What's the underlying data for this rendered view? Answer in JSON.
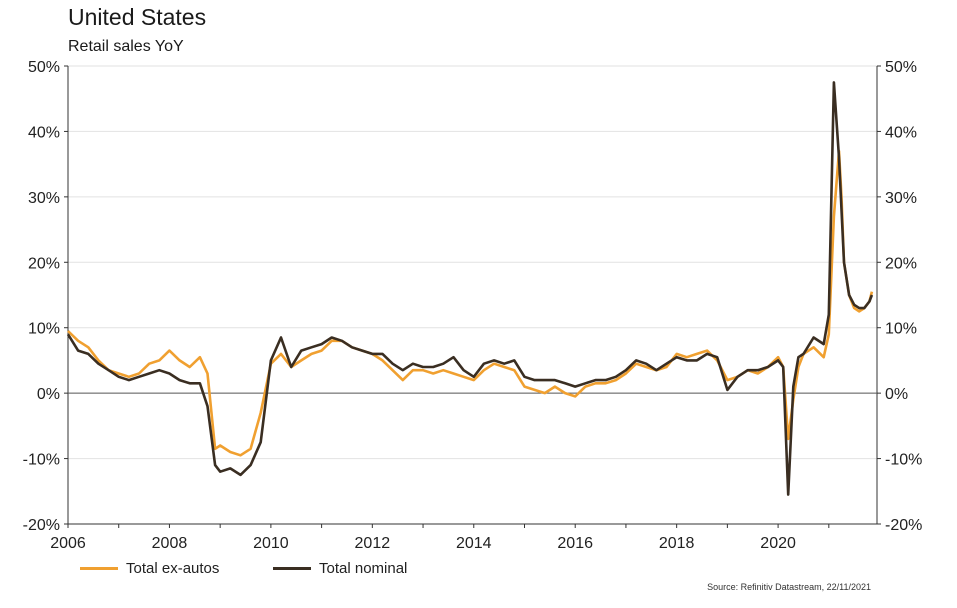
{
  "title": "United States",
  "subtitle": "Retail sales YoY",
  "source": "Source: Refinitiv Datastream, 22/11/2021",
  "colors": {
    "ex_autos": "#F0A030",
    "nominal": "#3A2E22",
    "zero_line": "#555555",
    "grid": "#e2e2e2",
    "axis": "#333333"
  },
  "chart_data": {
    "type": "line",
    "title": "United States",
    "subtitle": "Retail sales YoY",
    "xlabel": "",
    "ylabel": "",
    "xlim": [
      2006,
      2021.95
    ],
    "ylim": [
      -20,
      50
    ],
    "x_ticks": [
      2006,
      2008,
      2010,
      2012,
      2014,
      2016,
      2018,
      2020
    ],
    "x_tick_labels": [
      "2006",
      "2008",
      "2010",
      "2012",
      "2014",
      "2016",
      "2018",
      "2020"
    ],
    "y_ticks": [
      -20,
      -10,
      0,
      10,
      20,
      30,
      40,
      50
    ],
    "y_tick_labels": [
      "-20%",
      "-10%",
      "0%",
      "10%",
      "20%",
      "30%",
      "40%",
      "50%"
    ],
    "dual_axis_labels": true,
    "grid": "horizontal",
    "legend": "bottom-left",
    "series": [
      {
        "name": "Total ex-autos",
        "color": "#F0A030",
        "x": [
          2006.0,
          2006.2,
          2006.4,
          2006.6,
          2006.8,
          2007.0,
          2007.2,
          2007.4,
          2007.6,
          2007.8,
          2008.0,
          2008.2,
          2008.4,
          2008.6,
          2008.75,
          2008.9,
          2009.0,
          2009.2,
          2009.4,
          2009.6,
          2009.8,
          2010.0,
          2010.2,
          2010.4,
          2010.6,
          2010.8,
          2011.0,
          2011.2,
          2011.4,
          2011.6,
          2011.8,
          2012.0,
          2012.2,
          2012.4,
          2012.6,
          2012.8,
          2013.0,
          2013.2,
          2013.4,
          2013.6,
          2013.8,
          2014.0,
          2014.2,
          2014.4,
          2014.6,
          2014.8,
          2015.0,
          2015.2,
          2015.4,
          2015.6,
          2015.8,
          2016.0,
          2016.2,
          2016.4,
          2016.6,
          2016.8,
          2017.0,
          2017.2,
          2017.4,
          2017.6,
          2017.8,
          2018.0,
          2018.2,
          2018.4,
          2018.6,
          2018.8,
          2019.0,
          2019.2,
          2019.4,
          2019.6,
          2019.8,
          2020.0,
          2020.1,
          2020.2,
          2020.3,
          2020.4,
          2020.5,
          2020.7,
          2020.9,
          2021.0,
          2021.1,
          2021.2,
          2021.25,
          2021.3,
          2021.4,
          2021.5,
          2021.6,
          2021.7,
          2021.8,
          2021.85
        ],
        "values": [
          9.5,
          8.0,
          7.0,
          5.0,
          3.5,
          3.0,
          2.5,
          3.0,
          4.5,
          5.0,
          6.5,
          5.0,
          4.0,
          5.5,
          3.0,
          -8.5,
          -8.0,
          -9.0,
          -9.5,
          -8.5,
          -3.0,
          4.5,
          6.0,
          4.0,
          5.0,
          6.0,
          6.5,
          8.0,
          8.0,
          7.0,
          6.5,
          6.0,
          5.0,
          3.5,
          2.0,
          3.5,
          3.5,
          3.0,
          3.5,
          3.0,
          2.5,
          2.0,
          3.5,
          4.5,
          4.0,
          3.5,
          1.0,
          0.5,
          0.0,
          1.0,
          0.0,
          -0.5,
          1.0,
          1.5,
          1.5,
          2.0,
          3.0,
          4.5,
          4.0,
          3.5,
          4.0,
          6.0,
          5.5,
          6.0,
          6.5,
          5.0,
          2.0,
          2.5,
          3.5,
          3.0,
          4.0,
          5.5,
          4.0,
          -7.0,
          -1.0,
          4.0,
          6.0,
          7.0,
          5.5,
          9.0,
          27.0,
          37.0,
          30.0,
          20.0,
          15.0,
          13.0,
          12.5,
          13.0,
          14.0,
          15.5
        ]
      },
      {
        "name": "Total nominal",
        "color": "#3A2E22",
        "x": [
          2006.0,
          2006.2,
          2006.4,
          2006.6,
          2006.8,
          2007.0,
          2007.2,
          2007.4,
          2007.6,
          2007.8,
          2008.0,
          2008.2,
          2008.4,
          2008.6,
          2008.75,
          2008.9,
          2009.0,
          2009.2,
          2009.4,
          2009.6,
          2009.8,
          2010.0,
          2010.2,
          2010.4,
          2010.6,
          2010.8,
          2011.0,
          2011.2,
          2011.4,
          2011.6,
          2011.8,
          2012.0,
          2012.2,
          2012.4,
          2012.6,
          2012.8,
          2013.0,
          2013.2,
          2013.4,
          2013.6,
          2013.8,
          2014.0,
          2014.2,
          2014.4,
          2014.6,
          2014.8,
          2015.0,
          2015.2,
          2015.4,
          2015.6,
          2015.8,
          2016.0,
          2016.2,
          2016.4,
          2016.6,
          2016.8,
          2017.0,
          2017.2,
          2017.4,
          2017.6,
          2017.8,
          2018.0,
          2018.2,
          2018.4,
          2018.6,
          2018.8,
          2019.0,
          2019.2,
          2019.4,
          2019.6,
          2019.8,
          2020.0,
          2020.1,
          2020.2,
          2020.3,
          2020.4,
          2020.5,
          2020.7,
          2020.9,
          2021.0,
          2021.1,
          2021.2,
          2021.25,
          2021.3,
          2021.4,
          2021.5,
          2021.6,
          2021.7,
          2021.8,
          2021.85
        ],
        "values": [
          9.0,
          6.5,
          6.0,
          4.5,
          3.5,
          2.5,
          2.0,
          2.5,
          3.0,
          3.5,
          3.0,
          2.0,
          1.5,
          1.5,
          -2.0,
          -11.0,
          -12.0,
          -11.5,
          -12.5,
          -11.0,
          -7.5,
          5.0,
          8.5,
          4.0,
          6.5,
          7.0,
          7.5,
          8.5,
          8.0,
          7.0,
          6.5,
          6.0,
          6.0,
          4.5,
          3.5,
          4.5,
          4.0,
          4.0,
          4.5,
          5.5,
          3.5,
          2.5,
          4.5,
          5.0,
          4.5,
          5.0,
          2.5,
          2.0,
          2.0,
          2.0,
          1.5,
          1.0,
          1.5,
          2.0,
          2.0,
          2.5,
          3.5,
          5.0,
          4.5,
          3.5,
          4.5,
          5.5,
          5.0,
          5.0,
          6.0,
          5.5,
          0.5,
          2.5,
          3.5,
          3.5,
          4.0,
          5.0,
          4.0,
          -15.5,
          1.0,
          5.5,
          6.0,
          8.5,
          7.5,
          12.0,
          47.5,
          36.0,
          28.0,
          20.0,
          15.0,
          13.5,
          13.0,
          13.0,
          14.0,
          15.0
        ]
      }
    ]
  }
}
